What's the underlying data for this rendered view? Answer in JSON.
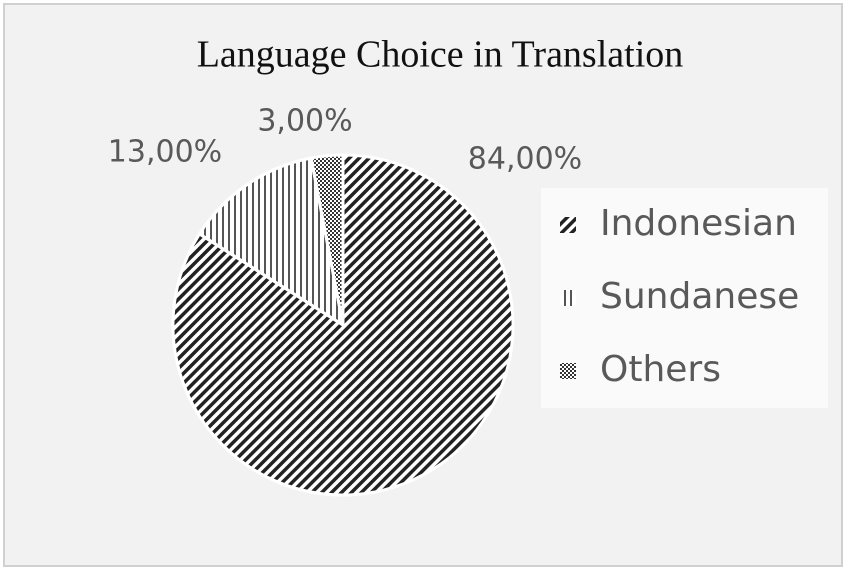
{
  "chart_data": {
    "type": "pie",
    "title": "Language Choice in Translation",
    "categories": [
      "Indonesian",
      "Sundanese",
      "Others"
    ],
    "values": [
      84,
      13,
      3
    ],
    "value_labels": [
      "84,00%",
      "13,00%",
      "3,00%"
    ],
    "colors": [
      "#222222",
      "#555555",
      "#333333"
    ],
    "legend": "right"
  }
}
